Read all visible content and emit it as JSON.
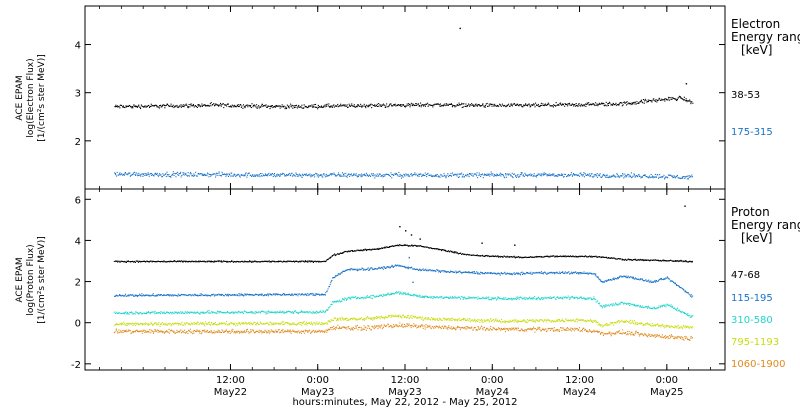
{
  "chart_data": {
    "type": "scatter",
    "xlabel": "hours:minutes, May 22, 2012 - May 25, 2012",
    "x_unit": "hours",
    "x_range_hours": [
      -8,
      80
    ],
    "x_ticks": [
      {
        "hours": 12,
        "time": "12:00",
        "date": "May22"
      },
      {
        "hours": 24,
        "time": "0:00",
        "date": "May23"
      },
      {
        "hours": 36,
        "time": "12:00",
        "date": "May23"
      },
      {
        "hours": 48,
        "time": "0:00",
        "date": "May24"
      },
      {
        "hours": 60,
        "time": "12:00",
        "date": "May24"
      },
      {
        "hours": 72,
        "time": "0:00",
        "date": "May25"
      }
    ],
    "panels": [
      {
        "ylabel": [
          "ACE EPAM",
          "log(Electron Flux)",
          "[1/(cm²s ster MeV)]"
        ],
        "ylim": [
          1.0,
          4.8
        ],
        "yticks": [
          2,
          3,
          4
        ],
        "legend_title": [
          "Electron",
          "Energy ranges"
        ],
        "legend_unit": "[keV]",
        "series": [
          {
            "name": "38-53",
            "color": "#000000",
            "keyframes": [
              [
                -4,
                2.72
              ],
              [
                10,
                2.75
              ],
              [
                20,
                2.72
              ],
              [
                30,
                2.74
              ],
              [
                40,
                2.76
              ],
              [
                50,
                2.74
              ],
              [
                60,
                2.76
              ],
              [
                66,
                2.78
              ],
              [
                70,
                2.85
              ],
              [
                74,
                2.9
              ],
              [
                75.5,
                2.8
              ]
            ],
            "scatter": 0.06,
            "outliers": [
              [
                43.5,
                4.35
              ],
              [
                74.6,
                3.2
              ]
            ]
          },
          {
            "name": "175-315",
            "color": "#1a73c8",
            "keyframes": [
              [
                -4,
                1.32
              ],
              [
                20,
                1.3
              ],
              [
                40,
                1.3
              ],
              [
                60,
                1.3
              ],
              [
                70,
                1.28
              ],
              [
                75.5,
                1.25
              ]
            ],
            "scatter": 0.07,
            "outliers": []
          }
        ]
      },
      {
        "ylabel": [
          "ACE EPAM",
          "log(Proton Flux)",
          "[1/(cm²s ster MeV)]"
        ],
        "ylim": [
          -2.3,
          6.5
        ],
        "yticks": [
          -2,
          0,
          2,
          4,
          6
        ],
        "legend_title": [
          "Proton",
          "Energy ranges"
        ],
        "legend_unit": "[keV]",
        "series": [
          {
            "name": "47-68",
            "color": "#000000",
            "keyframes": [
              [
                -4,
                3.0
              ],
              [
                25,
                3.0
              ],
              [
                26,
                3.3
              ],
              [
                28,
                3.5
              ],
              [
                32,
                3.6
              ],
              [
                35,
                3.8
              ],
              [
                38,
                3.75
              ],
              [
                42,
                3.5
              ],
              [
                45,
                3.3
              ],
              [
                52,
                3.2
              ],
              [
                56,
                3.25
              ],
              [
                62,
                3.25
              ],
              [
                66,
                3.1
              ],
              [
                75.5,
                3.0
              ]
            ],
            "scatter": 0.05,
            "outliers": [
              [
                35.2,
                4.7
              ],
              [
                36.0,
                4.5
              ],
              [
                36.8,
                4.3
              ],
              [
                38.0,
                4.1
              ],
              [
                46.5,
                3.9
              ],
              [
                51.0,
                3.8
              ],
              [
                74.4,
                5.7
              ]
            ]
          },
          {
            "name": "115-195",
            "color": "#1a73c8",
            "keyframes": [
              [
                -4,
                1.35
              ],
              [
                25,
                1.4
              ],
              [
                26,
                2.2
              ],
              [
                28,
                2.6
              ],
              [
                32,
                2.65
              ],
              [
                35,
                2.8
              ],
              [
                38,
                2.6
              ],
              [
                42,
                2.5
              ],
              [
                50,
                2.4
              ],
              [
                55,
                2.45
              ],
              [
                60,
                2.45
              ],
              [
                62,
                2.4
              ],
              [
                63,
                2.0
              ],
              [
                66,
                2.3
              ],
              [
                70,
                2.0
              ],
              [
                72,
                2.2
              ],
              [
                75.5,
                1.3
              ]
            ],
            "scatter": 0.08,
            "outliers": [
              [
                36.5,
                3.2
              ],
              [
                37.0,
                2.0
              ]
            ]
          },
          {
            "name": "310-580",
            "color": "#22d4cc",
            "keyframes": [
              [
                -4,
                0.5
              ],
              [
                25,
                0.55
              ],
              [
                26,
                1.0
              ],
              [
                28,
                1.2
              ],
              [
                32,
                1.3
              ],
              [
                35,
                1.5
              ],
              [
                38,
                1.3
              ],
              [
                42,
                1.25
              ],
              [
                50,
                1.2
              ],
              [
                60,
                1.25
              ],
              [
                62,
                1.2
              ],
              [
                63,
                0.8
              ],
              [
                66,
                1.0
              ],
              [
                70,
                0.7
              ],
              [
                72,
                0.9
              ],
              [
                75.5,
                0.3
              ]
            ],
            "scatter": 0.1,
            "outliers": []
          },
          {
            "name": "795-1193",
            "color": "#c8dc10",
            "keyframes": [
              [
                -4,
                -0.05
              ],
              [
                25,
                0.0
              ],
              [
                26,
                0.2
              ],
              [
                30,
                0.2
              ],
              [
                35,
                0.35
              ],
              [
                40,
                0.2
              ],
              [
                50,
                0.1
              ],
              [
                60,
                0.15
              ],
              [
                62,
                0.1
              ],
              [
                63,
                -0.1
              ],
              [
                66,
                0.1
              ],
              [
                70,
                -0.1
              ],
              [
                75.5,
                -0.2
              ]
            ],
            "scatter": 0.12,
            "outliers": []
          },
          {
            "name": "1060-1900",
            "color": "#e08a1e",
            "keyframes": [
              [
                -4,
                -0.4
              ],
              [
                25,
                -0.4
              ],
              [
                26,
                -0.2
              ],
              [
                30,
                -0.25
              ],
              [
                35,
                -0.1
              ],
              [
                40,
                -0.2
              ],
              [
                50,
                -0.3
              ],
              [
                60,
                -0.3
              ],
              [
                62,
                -0.4
              ],
              [
                63,
                -0.5
              ],
              [
                66,
                -0.45
              ],
              [
                70,
                -0.6
              ],
              [
                75.5,
                -0.75
              ]
            ],
            "scatter": 0.15,
            "outliers": []
          }
        ]
      }
    ]
  }
}
